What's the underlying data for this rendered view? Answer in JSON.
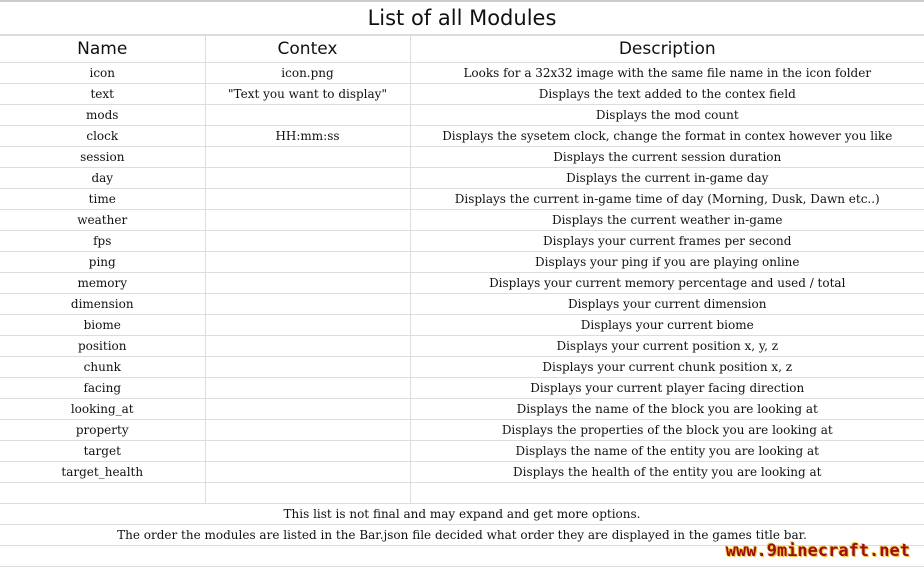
{
  "title": "List of all Modules",
  "columns": [
    "Name",
    "Contex",
    "Description"
  ],
  "rows": [
    [
      "icon",
      "icon.png",
      "Looks for a 32x32 image with the same file name in the icon folder"
    ],
    [
      "text",
      "\"Text you want to display\"",
      "Displays the text added to the contex field"
    ],
    [
      "mods",
      "",
      "Displays the mod count"
    ],
    [
      "clock",
      "HH:mm:ss",
      "Displays the sysetem clock, change the format in contex however you like"
    ],
    [
      "session",
      "",
      "Displays the current session duration"
    ],
    [
      "day",
      "",
      "Displays the current in-game day"
    ],
    [
      "time",
      "",
      "Displays the current in-game time of day (Morning, Dusk, Dawn etc..)"
    ],
    [
      "weather",
      "",
      "Displays the current weather in-game"
    ],
    [
      "fps",
      "",
      "Displays your current frames per second"
    ],
    [
      "ping",
      "",
      "Displays your ping if you are playing online"
    ],
    [
      "memory",
      "",
      "Displays your current memory percentage and used / total"
    ],
    [
      "dimension",
      "",
      "Displays your current dimension"
    ],
    [
      "biome",
      "",
      "Displays your current biome"
    ],
    [
      "position",
      "",
      "Displays your current position x, y, z"
    ],
    [
      "chunk",
      "",
      "Displays your current chunk position x, z"
    ],
    [
      "facing",
      "",
      "Displays your current player facing direction"
    ],
    [
      "looking_at",
      "",
      "Displays the name of the block you are looking at"
    ],
    [
      "property",
      "",
      "Displays the properties of the block you are looking at"
    ],
    [
      "target",
      "",
      "Displays the name of the entity you are looking at"
    ],
    [
      "target_health",
      "",
      "Displays the health of the entity you are looking at"
    ]
  ],
  "notes": [
    "This list is not final and may expand and get more options.",
    "The order the modules are listed in the Bar.json file decided what order they are displayed in the games title bar."
  ],
  "watermark": "www.9minecraft.net"
}
